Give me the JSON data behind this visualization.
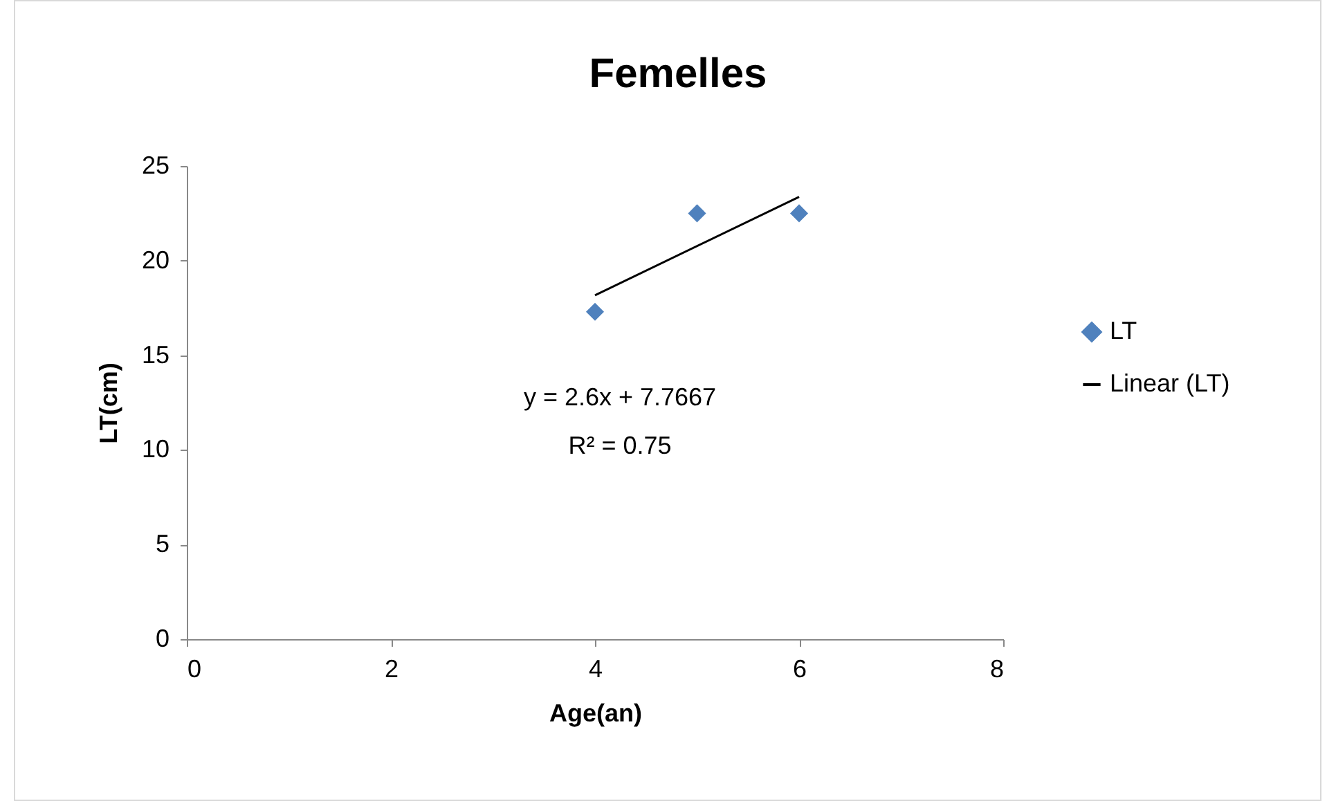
{
  "chart_data": {
    "type": "scatter",
    "title": "Femelles",
    "xlabel": "Age(an)",
    "ylabel": "LT(cm)",
    "xlim": [
      0,
      8
    ],
    "xticks": [
      0,
      2,
      4,
      6,
      8
    ],
    "ylim": [
      0,
      25
    ],
    "yticks": [
      0,
      5,
      10,
      15,
      20,
      25
    ],
    "grid": false,
    "legend": "right",
    "annotations": [
      "y = 2.6x + 7.7667",
      "R² = 0.75"
    ],
    "series": [
      {
        "name": "LT",
        "color": "#4f81bd",
        "marker": "diamond",
        "x": [
          4,
          5,
          6
        ],
        "values": [
          17.3,
          22.5,
          22.5
        ]
      },
      {
        "name": "Linear (LT)",
        "type": "line",
        "color": "#000000",
        "x": [
          4,
          6
        ],
        "values": [
          18.17,
          23.37
        ],
        "marker": "none",
        "line_style": "solid"
      }
    ]
  }
}
